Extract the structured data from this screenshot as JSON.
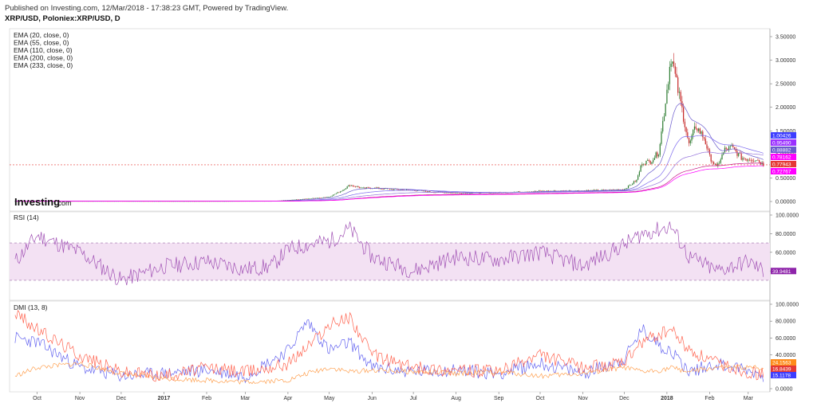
{
  "header": {
    "published": "Published on Investing.com, 12/Mar/2018 - 17:38:23 GMT, Powered by TradingView.",
    "symbol": "XRP/USD, Poloniex:XRP/USD, D"
  },
  "legend": [
    "EMA (20, close, 0)",
    "EMA (55, close, 0)",
    "EMA (110, close, 0)",
    "EMA (200, close, 0)",
    "EMA (233, close, 0)"
  ],
  "logo": {
    "brand": "Investing",
    "suffix": ".com"
  },
  "colors": {
    "up": "#2e7d32",
    "down": "#c62828",
    "ema20": "#6a5acd",
    "ema55": "#7b68ee",
    "ema110": "#9370db",
    "ema200": "#c71585",
    "ema233": "#ff00ff",
    "rsi": "#a050b4",
    "rsi_band": "#f3e1f3",
    "di_plus": "#6464f0",
    "di_minus": "#ff6450",
    "adx": "#ffa050",
    "price_line": "#e53935"
  },
  "chart_data": [
    {
      "type": "line",
      "name": "price",
      "x": [
        "2016-09-15",
        "2016-10-01",
        "2016-11-01",
        "2016-12-01",
        "2017-01-01",
        "2017-02-01",
        "2017-03-01",
        "2017-03-20",
        "2017-04-01",
        "2017-04-15",
        "2017-05-01",
        "2017-05-10",
        "2017-05-16",
        "2017-05-25",
        "2017-06-01",
        "2017-06-15",
        "2017-07-01",
        "2017-07-15",
        "2017-08-01",
        "2017-09-01",
        "2017-10-01",
        "2017-11-01",
        "2017-11-20",
        "2017-12-01",
        "2017-12-10",
        "2017-12-14",
        "2017-12-20",
        "2017-12-26",
        "2017-12-30",
        "2018-01-04",
        "2018-01-08",
        "2018-01-12",
        "2018-01-17",
        "2018-01-22",
        "2018-01-28",
        "2018-02-01",
        "2018-02-06",
        "2018-02-12",
        "2018-02-17",
        "2018-02-24",
        "2018-03-01",
        "2018-03-07",
        "2018-03-12"
      ],
      "y": [
        0.007,
        0.007,
        0.007,
        0.007,
        0.006,
        0.006,
        0.008,
        0.009,
        0.03,
        0.06,
        0.1,
        0.23,
        0.35,
        0.28,
        0.29,
        0.26,
        0.24,
        0.2,
        0.18,
        0.19,
        0.22,
        0.23,
        0.24,
        0.26,
        0.45,
        0.83,
        0.85,
        1.05,
        1.9,
        3.1,
        2.5,
        1.95,
        1.2,
        1.6,
        1.35,
        0.95,
        0.72,
        1.1,
        1.15,
        0.93,
        0.9,
        0.9,
        0.78
      ],
      "ylim": [
        0,
        3.5
      ],
      "yticks": [
        "3.50000",
        "3.00000",
        "2.50000",
        "2.00000",
        "1.50000",
        "1.00000",
        "0.50000",
        "0.00000"
      ],
      "price_labels": [
        {
          "value": "1.00426",
          "color": "#3d3dff"
        },
        {
          "value": "0.95490",
          "color": "#9b30ff"
        },
        {
          "value": "0.88882",
          "color": "#6a5acd"
        },
        {
          "value": "0.78162",
          "color": "#ff00ff"
        },
        {
          "value": "0.77943",
          "color": "#e53935"
        },
        {
          "value": "0.72767",
          "color": "#ff00ff"
        }
      ]
    },
    {
      "type": "line",
      "name": "RSI (14)",
      "x": [
        "2016-09-15",
        "2016-10-01",
        "2016-11-01",
        "2016-12-01",
        "2017-01-01",
        "2017-02-01",
        "2017-03-01",
        "2017-03-20",
        "2017-04-01",
        "2017-04-15",
        "2017-05-01",
        "2017-05-16",
        "2017-06-01",
        "2017-07-01",
        "2017-08-01",
        "2017-09-01",
        "2017-10-01",
        "2017-11-01",
        "2017-12-01",
        "2017-12-14",
        "2017-12-28",
        "2018-01-04",
        "2018-01-17",
        "2018-02-06",
        "2018-03-01",
        "2018-03-12"
      ],
      "y": [
        50,
        78,
        60,
        30,
        45,
        50,
        42,
        45,
        63,
        68,
        72,
        85,
        55,
        40,
        55,
        52,
        60,
        45,
        68,
        80,
        85,
        88,
        55,
        40,
        50,
        39.9481
      ],
      "ylim": [
        0,
        100
      ],
      "yticks": [
        "100.0000",
        "80.0000",
        "60.0000",
        "40.0000"
      ],
      "band": [
        30,
        70
      ],
      "last_value": "39.9481"
    },
    {
      "type": "line",
      "name": "DMI (13, 8)",
      "x": [
        "2016-09-15",
        "2016-10-01",
        "2016-11-01",
        "2016-12-01",
        "2017-01-01",
        "2017-02-01",
        "2017-03-01",
        "2017-04-01",
        "2017-04-15",
        "2017-05-01",
        "2017-05-16",
        "2017-06-01",
        "2017-07-01",
        "2017-08-01",
        "2017-09-01",
        "2017-10-01",
        "2017-11-01",
        "2017-12-01",
        "2017-12-14",
        "2017-12-28",
        "2018-01-04",
        "2018-01-17",
        "2018-02-06",
        "2018-03-01",
        "2018-03-12"
      ],
      "ylim": [
        0,
        100
      ],
      "yticks": [
        "100.0000",
        "80.0000",
        "60.0000",
        "40.0000",
        "0.0000"
      ],
      "series": [
        {
          "name": "+DI",
          "y": [
            60,
            55,
            25,
            15,
            18,
            22,
            15,
            45,
            80,
            45,
            55,
            25,
            20,
            22,
            18,
            30,
            18,
            35,
            70,
            50,
            45,
            20,
            30,
            22,
            15.1178
          ]
        },
        {
          "name": "-DI",
          "y": [
            90,
            70,
            40,
            20,
            15,
            25,
            20,
            30,
            50,
            75,
            85,
            40,
            25,
            22,
            20,
            40,
            25,
            30,
            55,
            65,
            70,
            45,
            30,
            20,
            16.8439
          ]
        },
        {
          "name": "ADX",
          "y": [
            15,
            25,
            30,
            18,
            12,
            10,
            8,
            10,
            18,
            25,
            20,
            22,
            20,
            18,
            20,
            15,
            18,
            25,
            20,
            22,
            25,
            20,
            25,
            25,
            24.1563
          ]
        }
      ],
      "last_values": [
        {
          "value": "24.1563",
          "color": "#ff8c1a"
        },
        {
          "value": "16.8439",
          "color": "#e53935"
        },
        {
          "value": "15.1178",
          "color": "#3d3dff"
        }
      ]
    }
  ],
  "x_axis": {
    "ticks": [
      {
        "date": "2016-10-01",
        "label": "Oct",
        "bold": false
      },
      {
        "date": "2016-11-01",
        "label": "Nov",
        "bold": false
      },
      {
        "date": "2016-12-01",
        "label": "Dec",
        "bold": false
      },
      {
        "date": "2017-01-01",
        "label": "2017",
        "bold": true
      },
      {
        "date": "2017-02-01",
        "label": "Feb",
        "bold": false
      },
      {
        "date": "2017-03-01",
        "label": "Mar",
        "bold": false
      },
      {
        "date": "2017-04-01",
        "label": "Apr",
        "bold": false
      },
      {
        "date": "2017-05-01",
        "label": "May",
        "bold": false
      },
      {
        "date": "2017-06-01",
        "label": "Jun",
        "bold": false
      },
      {
        "date": "2017-07-01",
        "label": "Jul",
        "bold": false
      },
      {
        "date": "2017-08-01",
        "label": "Aug",
        "bold": false
      },
      {
        "date": "2017-09-01",
        "label": "Sep",
        "bold": false
      },
      {
        "date": "2017-10-01",
        "label": "Oct",
        "bold": false
      },
      {
        "date": "2017-11-01",
        "label": "Nov",
        "bold": false
      },
      {
        "date": "2017-12-01",
        "label": "Dec",
        "bold": false
      },
      {
        "date": "2018-01-01",
        "label": "2018",
        "bold": true
      },
      {
        "date": "2018-02-01",
        "label": "Feb",
        "bold": false
      },
      {
        "date": "2018-03-01",
        "label": "Mar",
        "bold": false
      }
    ],
    "range": [
      "2016-09-11",
      "2018-03-15"
    ]
  },
  "panels": {
    "rsi_label": "RSI (14)",
    "dmi_label": "DMI (13, 8)"
  }
}
